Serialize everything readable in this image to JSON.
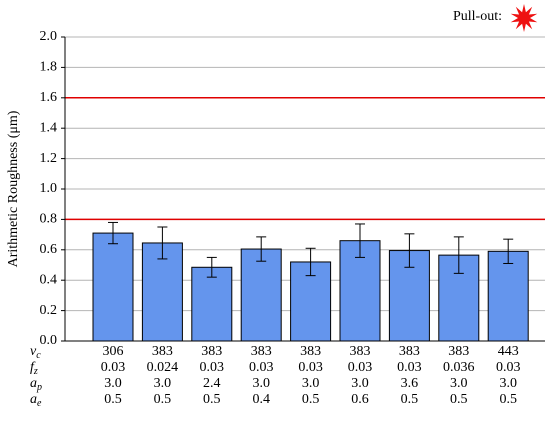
{
  "chart_data": {
    "type": "bar",
    "ylabel": "Arithmetic Roughness (μm)",
    "ylim": [
      0,
      2.0
    ],
    "yticks": [
      {
        "value": 0,
        "label": "0.0"
      },
      {
        "value": 0.2,
        "label": "0.2"
      },
      {
        "value": 0.4,
        "label": "0.4"
      },
      {
        "value": 0.6,
        "label": "0.6"
      },
      {
        "value": 0.8,
        "label": "0.8"
      },
      {
        "value": 1.0,
        "label": "1.0"
      },
      {
        "value": 1.2,
        "label": "1.2"
      },
      {
        "value": 1.4,
        "label": "1.4"
      },
      {
        "value": 1.6,
        "label": "1.6"
      },
      {
        "value": 1.8,
        "label": "1.8"
      },
      {
        "value": 2.0,
        "label": "2.0"
      }
    ],
    "grid": true,
    "color": "#6495ed",
    "values": [
      0.71,
      0.645,
      0.485,
      0.605,
      0.52,
      0.66,
      0.595,
      0.565,
      0.59
    ],
    "errors": [
      0.07,
      0.105,
      0.065,
      0.08,
      0.09,
      0.11,
      0.11,
      0.12,
      0.08
    ],
    "reference_lines": [
      {
        "value": 0.8,
        "color": "#e00000"
      },
      {
        "value": 1.6,
        "color": "#e00000"
      }
    ],
    "legend": {
      "label": "Pull-out:",
      "color": "#ee1111"
    },
    "x_label_rows": [
      {
        "name": "v",
        "subscript": "c",
        "labels": [
          "306",
          "383",
          "383",
          "383",
          "383",
          "383",
          "383",
          "383",
          "443"
        ]
      },
      {
        "name": "f",
        "subscript": "z",
        "labels": [
          "0.03",
          "0.024",
          "0.03",
          "0.03",
          "0.03",
          "0.03",
          "0.03",
          "0.036",
          "0.03"
        ]
      },
      {
        "name": "a",
        "subscript": "p",
        "labels": [
          "3.0",
          "3.0",
          "2.4",
          "3.0",
          "3.0",
          "3.0",
          "3.6",
          "3.0",
          "3.0"
        ]
      },
      {
        "name": "a",
        "subscript": "e",
        "labels": [
          "0.5",
          "0.5",
          "0.5",
          "0.4",
          "0.5",
          "0.6",
          "0.5",
          "0.5",
          "0.5"
        ]
      }
    ]
  }
}
